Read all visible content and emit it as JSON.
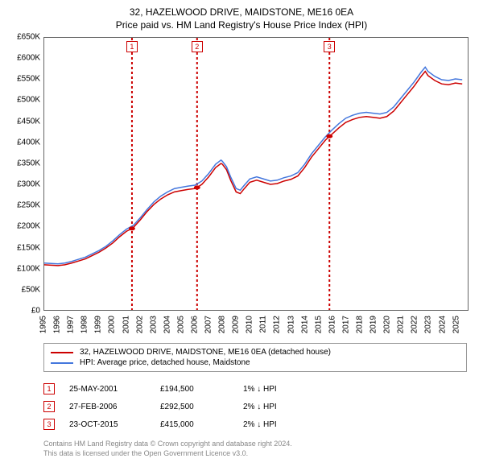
{
  "title": "32, HAZELWOOD DRIVE, MAIDSTONE, ME16 0EA",
  "subtitle": "Price paid vs. HM Land Registry's House Price Index (HPI)",
  "chart": {
    "type": "line",
    "background_color": "#ffffff",
    "border_color": "#666666",
    "font_family": "Arial",
    "title_fontsize": 12,
    "label_fontsize": 10,
    "x": {
      "min": 1995,
      "max": 2025.9,
      "ticks": [
        1995,
        1996,
        1997,
        1998,
        1999,
        2000,
        2001,
        2002,
        2003,
        2004,
        2005,
        2006,
        2007,
        2008,
        2009,
        2010,
        2011,
        2012,
        2013,
        2014,
        2015,
        2016,
        2017,
        2018,
        2019,
        2020,
        2021,
        2022,
        2023,
        2024,
        2025
      ]
    },
    "y": {
      "min": 0,
      "max": 650000,
      "tick_step": 50000,
      "tick_labels": [
        "£0",
        "£50K",
        "£100K",
        "£150K",
        "£200K",
        "£250K",
        "£300K",
        "£350K",
        "£400K",
        "£450K",
        "£500K",
        "£550K",
        "£600K",
        "£650K"
      ]
    },
    "series": [
      {
        "name": "32, HAZELWOOD DRIVE, MAIDSTONE, ME16 0EA (detached house)",
        "color": "#cc0000",
        "line_width": 1.5,
        "points": [
          [
            1995.0,
            108000
          ],
          [
            1995.5,
            107000
          ],
          [
            1996.0,
            106000
          ],
          [
            1996.5,
            108000
          ],
          [
            1997.0,
            112000
          ],
          [
            1997.5,
            117000
          ],
          [
            1998.0,
            122000
          ],
          [
            1998.5,
            130000
          ],
          [
            1999.0,
            138000
          ],
          [
            1999.5,
            148000
          ],
          [
            2000.0,
            160000
          ],
          [
            2000.5,
            175000
          ],
          [
            2001.0,
            188000
          ],
          [
            2001.4,
            194500
          ],
          [
            2001.5,
            197000
          ],
          [
            2002.0,
            215000
          ],
          [
            2002.5,
            235000
          ],
          [
            2003.0,
            252000
          ],
          [
            2003.5,
            265000
          ],
          [
            2004.0,
            275000
          ],
          [
            2004.5,
            282000
          ],
          [
            2005.0,
            285000
          ],
          [
            2005.5,
            288000
          ],
          [
            2006.0,
            290000
          ],
          [
            2006.15,
            292500
          ],
          [
            2006.5,
            300000
          ],
          [
            2007.0,
            318000
          ],
          [
            2007.5,
            340000
          ],
          [
            2007.9,
            350000
          ],
          [
            2008.0,
            348000
          ],
          [
            2008.3,
            335000
          ],
          [
            2008.6,
            310000
          ],
          [
            2009.0,
            282000
          ],
          [
            2009.3,
            278000
          ],
          [
            2009.6,
            290000
          ],
          [
            2010.0,
            305000
          ],
          [
            2010.5,
            310000
          ],
          [
            2011.0,
            305000
          ],
          [
            2011.5,
            300000
          ],
          [
            2012.0,
            302000
          ],
          [
            2012.5,
            308000
          ],
          [
            2013.0,
            312000
          ],
          [
            2013.5,
            320000
          ],
          [
            2014.0,
            340000
          ],
          [
            2014.5,
            365000
          ],
          [
            2015.0,
            385000
          ],
          [
            2015.5,
            405000
          ],
          [
            2015.81,
            415000
          ],
          [
            2016.0,
            420000
          ],
          [
            2016.5,
            435000
          ],
          [
            2017.0,
            448000
          ],
          [
            2017.5,
            455000
          ],
          [
            2018.0,
            460000
          ],
          [
            2018.5,
            462000
          ],
          [
            2019.0,
            460000
          ],
          [
            2019.5,
            458000
          ],
          [
            2020.0,
            462000
          ],
          [
            2020.5,
            475000
          ],
          [
            2021.0,
            495000
          ],
          [
            2021.5,
            515000
          ],
          [
            2022.0,
            535000
          ],
          [
            2022.5,
            558000
          ],
          [
            2022.8,
            570000
          ],
          [
            2023.0,
            560000
          ],
          [
            2023.5,
            548000
          ],
          [
            2024.0,
            540000
          ],
          [
            2024.5,
            538000
          ],
          [
            2025.0,
            542000
          ],
          [
            2025.5,
            540000
          ]
        ]
      },
      {
        "name": "HPI: Average price, detached house, Maidstone",
        "color": "#4477dd",
        "line_width": 1.5,
        "points": [
          [
            1995.0,
            112000
          ],
          [
            1995.5,
            111000
          ],
          [
            1996.0,
            110000
          ],
          [
            1996.5,
            112000
          ],
          [
            1997.0,
            116000
          ],
          [
            1997.5,
            121000
          ],
          [
            1998.0,
            126000
          ],
          [
            1998.5,
            134000
          ],
          [
            1999.0,
            142000
          ],
          [
            1999.5,
            152000
          ],
          [
            2000.0,
            165000
          ],
          [
            2000.5,
            180000
          ],
          [
            2001.0,
            193000
          ],
          [
            2001.5,
            202000
          ],
          [
            2002.0,
            220000
          ],
          [
            2002.5,
            240000
          ],
          [
            2003.0,
            258000
          ],
          [
            2003.5,
            272000
          ],
          [
            2004.0,
            282000
          ],
          [
            2004.5,
            290000
          ],
          [
            2005.0,
            293000
          ],
          [
            2005.5,
            296000
          ],
          [
            2006.0,
            298000
          ],
          [
            2006.5,
            308000
          ],
          [
            2007.0,
            326000
          ],
          [
            2007.5,
            348000
          ],
          [
            2007.9,
            358000
          ],
          [
            2008.0,
            355000
          ],
          [
            2008.3,
            342000
          ],
          [
            2008.6,
            318000
          ],
          [
            2009.0,
            290000
          ],
          [
            2009.3,
            286000
          ],
          [
            2009.6,
            298000
          ],
          [
            2010.0,
            313000
          ],
          [
            2010.5,
            318000
          ],
          [
            2011.0,
            313000
          ],
          [
            2011.5,
            308000
          ],
          [
            2012.0,
            310000
          ],
          [
            2012.5,
            316000
          ],
          [
            2013.0,
            320000
          ],
          [
            2013.5,
            328000
          ],
          [
            2014.0,
            348000
          ],
          [
            2014.5,
            373000
          ],
          [
            2015.0,
            393000
          ],
          [
            2015.5,
            413000
          ],
          [
            2016.0,
            430000
          ],
          [
            2016.5,
            445000
          ],
          [
            2017.0,
            458000
          ],
          [
            2017.5,
            465000
          ],
          [
            2018.0,
            470000
          ],
          [
            2018.5,
            472000
          ],
          [
            2019.0,
            470000
          ],
          [
            2019.5,
            468000
          ],
          [
            2020.0,
            472000
          ],
          [
            2020.5,
            485000
          ],
          [
            2021.0,
            505000
          ],
          [
            2021.5,
            525000
          ],
          [
            2022.0,
            545000
          ],
          [
            2022.5,
            568000
          ],
          [
            2022.8,
            580000
          ],
          [
            2023.0,
            570000
          ],
          [
            2023.5,
            558000
          ],
          [
            2024.0,
            550000
          ],
          [
            2024.5,
            548000
          ],
          [
            2025.0,
            552000
          ],
          [
            2025.5,
            550000
          ]
        ]
      }
    ],
    "transaction_markers": [
      {
        "n": "1",
        "x": 2001.4,
        "line_color": "#cc0000",
        "dash": "3,3",
        "dot_y": 194500
      },
      {
        "n": "2",
        "x": 2006.15,
        "line_color": "#cc0000",
        "dash": "3,3",
        "dot_y": 292500
      },
      {
        "n": "3",
        "x": 2015.81,
        "line_color": "#cc0000",
        "dash": "3,3",
        "dot_y": 415000
      }
    ],
    "marker_dot_color": "#cc0000",
    "marker_dot_radius": 3
  },
  "legend": {
    "items": [
      {
        "color": "#cc0000",
        "label": "32, HAZELWOOD DRIVE, MAIDSTONE, ME16 0EA (detached house)"
      },
      {
        "color": "#4477dd",
        "label": "HPI: Average price, detached house, Maidstone"
      }
    ]
  },
  "transactions": [
    {
      "n": "1",
      "date": "25-MAY-2001",
      "price": "£194,500",
      "diff": "1% ↓ HPI"
    },
    {
      "n": "2",
      "date": "27-FEB-2006",
      "price": "£292,500",
      "diff": "2% ↓ HPI"
    },
    {
      "n": "3",
      "date": "23-OCT-2015",
      "price": "£415,000",
      "diff": "2% ↓ HPI"
    }
  ],
  "footer": {
    "line1": "Contains HM Land Registry data © Crown copyright and database right 2024.",
    "line2": "This data is licensed under the Open Government Licence v3.0."
  }
}
